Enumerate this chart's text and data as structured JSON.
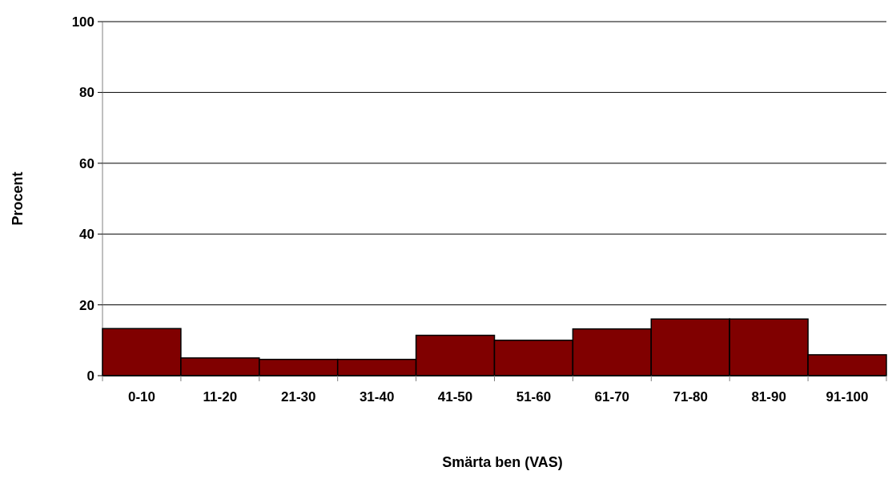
{
  "chart_data": {
    "type": "bar",
    "xlabel": "Smärta ben (VAS)",
    "ylabel": "Procent",
    "categories": [
      "0-10",
      "11-20",
      "21-30",
      "31-40",
      "41-50",
      "51-60",
      "61-70",
      "71-80",
      "81-90",
      "91-100"
    ],
    "values": [
      13.3,
      5.0,
      4.6,
      4.6,
      11.4,
      10.0,
      13.2,
      16.0,
      16.0,
      5.9
    ],
    "color": "#800000",
    "ylim": [
      0,
      100
    ],
    "yticks": [
      0,
      20,
      40,
      60,
      80,
      100
    ],
    "grid": "y"
  }
}
